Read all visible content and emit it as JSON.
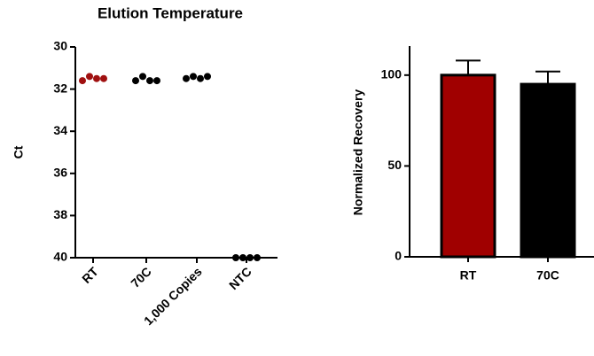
{
  "chart_data": [
    {
      "type": "dot",
      "title": "Elution Temperature",
      "y_label": "Ct",
      "categories": [
        "RT",
        "70C",
        "1,000 Copies",
        "NTC"
      ],
      "values": [
        [
          31.6,
          31.4,
          31.5,
          31.5
        ],
        [
          31.6,
          31.4,
          31.6,
          31.6
        ],
        [
          31.5,
          31.4,
          31.5,
          31.4
        ],
        [
          40,
          40,
          40,
          40
        ]
      ],
      "colors": [
        "#a01010",
        "#000000",
        "#000000",
        "#000000"
      ],
      "ylim": [
        30,
        40
      ],
      "yticks": [
        30,
        32,
        34,
        36,
        38,
        40
      ],
      "y_inverted": true
    },
    {
      "type": "bar",
      "y_label": "Normalized  Recovery",
      "categories": [
        "RT",
        "70C"
      ],
      "values": [
        100,
        95
      ],
      "errors": [
        8,
        7
      ],
      "colors": [
        "#a00000",
        "#000000"
      ],
      "ylim": [
        0,
        116
      ],
      "yticks": [
        0,
        50,
        100
      ]
    }
  ]
}
